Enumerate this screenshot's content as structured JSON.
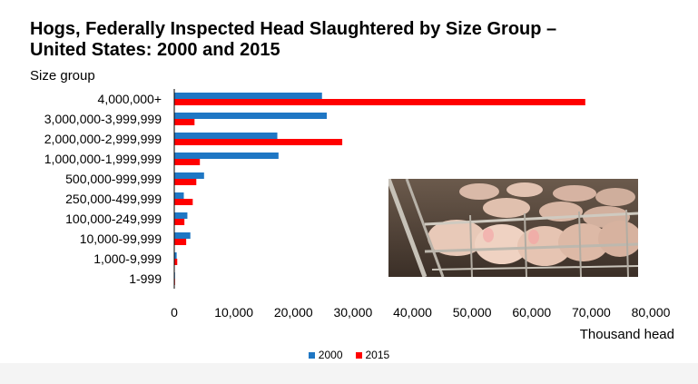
{
  "chart_data": {
    "type": "bar",
    "orientation": "horizontal",
    "title": "Hogs, Federally Inspected Head Slaughtered by Size Group – United States: 2000 and 2015",
    "ylabel": "Size group",
    "xlabel": "Thousand head",
    "categories": [
      "4,000,000+",
      "3,000,000-3,999,999",
      "2,000,000-2,999,999",
      "1,000,000-1,999,999",
      "500,000-999,999",
      "250,000-499,999",
      "100,000-249,999",
      "10,000-99,999",
      "1,000-9,999",
      "1-999"
    ],
    "series": [
      {
        "name": "2000",
        "color": "#1f77c4",
        "values": [
          24800,
          25600,
          17300,
          17500,
          5000,
          1600,
          2200,
          2700,
          400,
          50
        ]
      },
      {
        "name": "2015",
        "color": "#ff0000",
        "values": [
          69000,
          3400,
          28200,
          4300,
          3700,
          3100,
          1700,
          2000,
          500,
          40
        ]
      }
    ],
    "xlim": [
      0,
      80000
    ],
    "xticks": [
      "0",
      "10,000",
      "20,000",
      "30,000",
      "40,000",
      "50,000",
      "60,000",
      "70,000",
      "80,000"
    ],
    "xtick_values": [
      0,
      10000,
      20000,
      30000,
      40000,
      50000,
      60000,
      70000,
      80000
    ],
    "legend_position": "bottom-center",
    "grid": false
  },
  "photo": {
    "icon": "hogs-in-pen-photo"
  }
}
